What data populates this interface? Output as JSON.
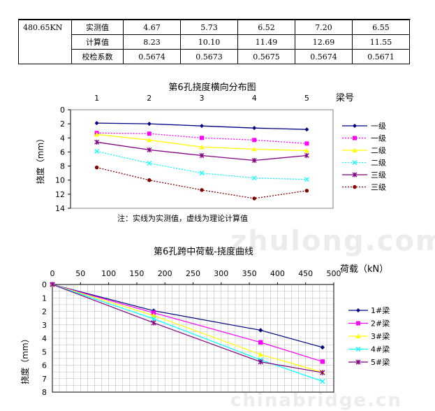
{
  "table": {
    "load": "480.65KN",
    "rows": [
      {
        "label": "实测值",
        "values": [
          "4.67",
          "5.73",
          "6.52",
          "7.20",
          "6.55"
        ]
      },
      {
        "label": "计算值",
        "values": [
          "8.23",
          "10.10",
          "11.49",
          "12.69",
          "11.55"
        ]
      },
      {
        "label": "校检系数",
        "values": [
          "0.5674",
          "0.5673",
          "0.5675",
          "0.5674",
          "0.5671"
        ]
      }
    ]
  },
  "watermarks": {
    "top": "zhulong.com",
    "bottom": "chinabridge.cn"
  },
  "chart_data": [
    {
      "type": "line",
      "title": "第6孔挠度横向分布图",
      "xlabel": "梁号",
      "ylabel": "挠度（mm）",
      "x": [
        1,
        2,
        3,
        4,
        5
      ],
      "xlim": [
        0.5,
        5.5
      ],
      "ylim": [
        0,
        14
      ],
      "y_inverted": true,
      "y_ticks": [
        0,
        2,
        4,
        6,
        8,
        10,
        12,
        14
      ],
      "legend_position": "right",
      "note": "注：实线为实测值，虚线为理论计算值",
      "series": [
        {
          "name": "一级",
          "style": "solid",
          "marker": "diamond",
          "color": "#000080",
          "values": [
            1.9,
            2.0,
            2.3,
            2.6,
            2.8
          ]
        },
        {
          "name": "一级",
          "style": "dotted",
          "marker": "square",
          "color": "#ff00ff",
          "values": [
            3.3,
            3.4,
            4.0,
            4.3,
            4.8
          ]
        },
        {
          "name": "二级",
          "style": "solid",
          "marker": "triangle",
          "color": "#ffff00",
          "values": [
            3.5,
            4.3,
            5.3,
            5.6,
            5.8
          ]
        },
        {
          "name": "二级",
          "style": "dotted",
          "marker": "x",
          "color": "#00ffff",
          "values": [
            5.9,
            7.6,
            9.0,
            9.7,
            9.9
          ]
        },
        {
          "name": "三级",
          "style": "solid",
          "marker": "star",
          "color": "#800080",
          "values": [
            4.6,
            5.7,
            6.5,
            7.2,
            6.5
          ]
        },
        {
          "name": "三级",
          "style": "dotted",
          "marker": "circle",
          "color": "#800000",
          "values": [
            8.2,
            10.0,
            11.4,
            12.6,
            11.5
          ]
        }
      ]
    },
    {
      "type": "line",
      "title": "第6孔跨中荷载-挠度曲线",
      "xlabel": "荷载（kN）",
      "ylabel": "挠度（mm）",
      "xlim": [
        0,
        500
      ],
      "ylim": [
        0,
        8
      ],
      "x_ticks": [
        0,
        50,
        100,
        150,
        200,
        250,
        300,
        350,
        400,
        450,
        500
      ],
      "y_ticks": [
        0,
        1,
        2,
        3,
        4,
        5,
        6,
        7,
        8
      ],
      "y_inverted": true,
      "grid": true,
      "legend_position": "right",
      "x": [
        0,
        180,
        370,
        480
      ],
      "series": [
        {
          "name": "1#梁",
          "marker": "diamond",
          "color": "#000080",
          "values": [
            0,
            1.95,
            3.4,
            4.67
          ]
        },
        {
          "name": "2#梁",
          "marker": "square",
          "color": "#ff00ff",
          "values": [
            0,
            2.1,
            4.3,
            5.73
          ]
        },
        {
          "name": "3#梁",
          "marker": "triangle",
          "color": "#ffff00",
          "values": [
            0,
            2.3,
            5.2,
            6.52
          ]
        },
        {
          "name": "4#梁",
          "marker": "x",
          "color": "#00ffff",
          "values": [
            0,
            2.55,
            5.6,
            7.2
          ]
        },
        {
          "name": "5#梁",
          "marker": "star",
          "color": "#800080",
          "values": [
            0,
            2.85,
            5.75,
            6.55
          ]
        }
      ]
    }
  ]
}
